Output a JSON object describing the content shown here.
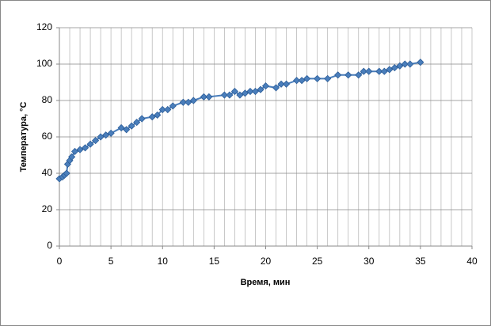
{
  "chart_data": {
    "type": "line",
    "x_label": "Время, мин",
    "y_label": "Температура, °C",
    "x": [
      0,
      0.3,
      0.5,
      0.7,
      0.8,
      1,
      1.2,
      1.5,
      2,
      2.5,
      3,
      3.5,
      4,
      4.5,
      5,
      6,
      6.5,
      7,
      7.5,
      8,
      9,
      9.5,
      10,
      10.5,
      11,
      12,
      12.5,
      13,
      14,
      14.5,
      16,
      16.5,
      17,
      17.5,
      18,
      18.5,
      19,
      19.5,
      20,
      21,
      21.5,
      22,
      23,
      23.5,
      24,
      25,
      26,
      27,
      28,
      29,
      29.5,
      30,
      31,
      31.5,
      32,
      32.5,
      33,
      33.5,
      34,
      35
    ],
    "series": [
      {
        "color": "#4a7ebb",
        "values": [
          37,
          38,
          39,
          40,
          45,
          47,
          49,
          52,
          53,
          54,
          56,
          58,
          60,
          61,
          62,
          65,
          64,
          66,
          68,
          70,
          71,
          72,
          75,
          75,
          77,
          79,
          79,
          80,
          82,
          82,
          83,
          83,
          85,
          83,
          84,
          85,
          85,
          86,
          88,
          87,
          89,
          89,
          91,
          91,
          92,
          92,
          92,
          94,
          94,
          94,
          96,
          96,
          96,
          96,
          97,
          98,
          99,
          100,
          100,
          101
        ]
      }
    ],
    "xlim": [
      0,
      40
    ],
    "xticks": [
      0,
      5,
      10,
      15,
      20,
      25,
      30,
      35,
      40
    ],
    "xgrid": [
      0,
      1,
      2,
      3,
      4,
      5,
      6,
      7,
      8,
      9,
      10,
      11,
      12,
      13,
      14,
      15,
      16,
      17,
      18,
      19,
      20,
      21,
      22,
      23,
      24,
      25,
      26,
      27,
      28,
      29,
      30,
      31,
      32,
      33,
      34,
      35,
      36,
      37,
      38,
      39,
      40
    ],
    "ylim": [
      0,
      120
    ],
    "yticks": [
      0,
      20,
      40,
      60,
      80,
      100,
      120
    ],
    "grid": true
  }
}
